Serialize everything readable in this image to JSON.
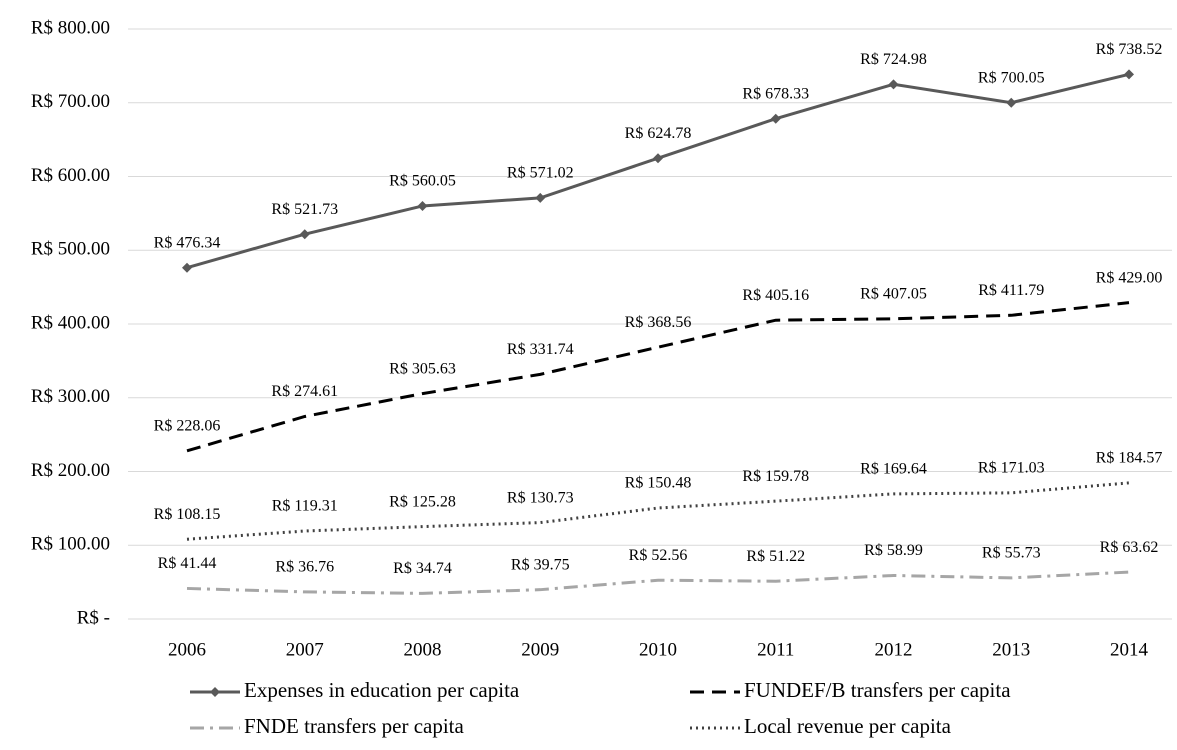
{
  "chart_data": {
    "type": "line",
    "categories": [
      "2006",
      "2007",
      "2008",
      "2009",
      "2010",
      "2011",
      "2012",
      "2013",
      "2014"
    ],
    "series": [
      {
        "name": "Expenses in education per capita",
        "color": "#595959",
        "dash": "none",
        "marker": "diamond",
        "values": [
          476.34,
          521.73,
          560.05,
          571.02,
          624.78,
          678.33,
          724.98,
          700.05,
          738.52
        ],
        "value_labels": [
          "R$ 476.34",
          "R$ 521.73",
          "R$ 560.05",
          "R$ 571.02",
          "R$ 624.78",
          "R$ 678.33",
          "R$ 724.98",
          "R$ 700.05",
          "R$ 738.52"
        ]
      },
      {
        "name": "FUNDEF/B transfers per capita",
        "color": "#000000",
        "dash": "14 8",
        "values": [
          228.06,
          274.61,
          305.63,
          331.74,
          368.56,
          405.16,
          407.05,
          411.79,
          429.0
        ],
        "value_labels": [
          "R$ 228.06",
          "R$ 274.61",
          "R$ 305.63",
          "R$ 331.74",
          "R$ 368.56",
          "R$ 405.16",
          "R$ 407.05",
          "R$ 411.79",
          "R$ 429.00"
        ]
      },
      {
        "name": "FNDE transfers per capita",
        "color": "#a6a6a6",
        "dash": "14 6 3 6",
        "values": [
          41.44,
          36.76,
          34.74,
          39.75,
          52.56,
          51.22,
          58.99,
          55.73,
          63.62
        ],
        "value_labels": [
          "R$ 41.44",
          "R$ 36.76",
          "R$ 34.74",
          "R$ 39.75",
          "R$ 52.56",
          "R$ 51.22",
          "R$ 58.99",
          "R$ 55.73",
          "R$ 63.62"
        ]
      },
      {
        "name": "Local revenue per capita",
        "color": "#404040",
        "dash": "2 4",
        "values": [
          108.15,
          119.31,
          125.28,
          130.73,
          150.48,
          159.78,
          169.64,
          171.03,
          184.57
        ],
        "value_labels": [
          "R$ 108.15",
          "R$ 119.31",
          "R$ 125.28",
          "R$ 130.73",
          "R$ 150.48",
          "R$ 159.78",
          "R$ 169.64",
          "R$ 171.03",
          "R$ 184.57"
        ]
      }
    ],
    "ylim": [
      0,
      800
    ],
    "yticks": [
      {
        "value": 0,
        "label": "R$ -"
      },
      {
        "value": 100,
        "label": "R$ 100.00"
      },
      {
        "value": 200,
        "label": "R$ 200.00"
      },
      {
        "value": 300,
        "label": "R$ 300.00"
      },
      {
        "value": 400,
        "label": "R$ 400.00"
      },
      {
        "value": 500,
        "label": "R$ 500.00"
      },
      {
        "value": 600,
        "label": "R$ 600.00"
      },
      {
        "value": 700,
        "label": "R$ 700.00"
      },
      {
        "value": 800,
        "label": "R$ 800.00"
      }
    ],
    "grid": true,
    "legend": "bottom"
  }
}
